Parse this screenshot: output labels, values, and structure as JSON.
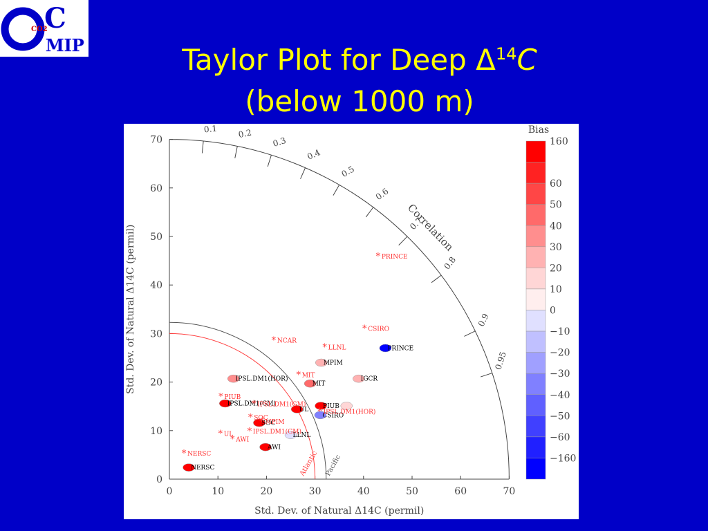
{
  "logo": {
    "letter_o": "O",
    "letter_c": "C",
    "word_mip": "MIP",
    "co2": "CO2"
  },
  "title": {
    "line1_prefix": "Taylor Plot for Deep Δ",
    "superscript": "14",
    "line1_suffix": "C",
    "line2": "(below 1000 m)"
  },
  "colors": {
    "background": "#0000c8",
    "title": "#ffff00",
    "panel": "#ffffff"
  },
  "chart_data": {
    "type": "scatter",
    "subtype": "taylor-diagram",
    "title": "Taylor Plot for Deep Δ14C (below 1000 m)",
    "xlabel": "Std. Dev. of Natural Δ14C (permil)",
    "ylabel": "Std. Dev. of Natural Δ14C (permil)",
    "xlim": [
      0,
      70
    ],
    "ylim": [
      0,
      70
    ],
    "x_ticks": [
      "0",
      "10",
      "20",
      "30",
      "40",
      "50",
      "60",
      "70"
    ],
    "y_ticks": [
      "0",
      "10",
      "20",
      "30",
      "40",
      "50",
      "60",
      "70"
    ],
    "correlation_label": "Correlation",
    "correlation_ticks": [
      {
        "r": 0.1,
        "label": "0.1"
      },
      {
        "r": 0.2,
        "label": "0.2"
      },
      {
        "r": 0.3,
        "label": "0.3"
      },
      {
        "r": 0.4,
        "label": "0.4"
      },
      {
        "r": 0.5,
        "label": "0.5"
      },
      {
        "r": 0.6,
        "label": "0.6"
      },
      {
        "r": 0.7,
        "label": "0.7"
      },
      {
        "r": 0.8,
        "label": "0.8"
      },
      {
        "r": 0.9,
        "label": "0.9"
      },
      {
        "r": 0.95,
        "label": "0.95"
      }
    ],
    "reference_arcs": [
      {
        "name": "Pacific",
        "std": 32.3,
        "color": "#555555"
      },
      {
        "name": "Atlantic",
        "std": 30.0,
        "color": "#ff4040"
      }
    ],
    "colorbar": {
      "title": "Bias",
      "labels": [
        "160",
        "60",
        "50",
        "40",
        "30",
        "20",
        "10",
        "0",
        "−10",
        "−20",
        "−30",
        "−40",
        "−50",
        "−60",
        "−160"
      ],
      "colors": [
        "#ff0000",
        "#ff2222",
        "#ff4646",
        "#ff6a6a",
        "#ff8e8e",
        "#ffb2b2",
        "#ffd6d6",
        "#ffeeee",
        "#e0e0ff",
        "#c0c0ff",
        "#a0a0ff",
        "#8080ff",
        "#6060ff",
        "#4040ff",
        "#2020ff",
        "#0000ff"
      ]
    },
    "pacific_models": [
      {
        "label": "PRINCE",
        "x": 44.5,
        "y": 27.0,
        "color": "#0000ff"
      },
      {
        "label": "MPIM",
        "x": 31.3,
        "y": 24.0,
        "color": "#ffb2b2"
      },
      {
        "label": "IGCR",
        "x": 39.0,
        "y": 20.7,
        "color": "#ffb2b2"
      },
      {
        "label": "IPSL.DM1(HOR)",
        "x": 13.2,
        "y": 20.7,
        "color": "#ff8e8e"
      },
      {
        "label": "MIT",
        "x": 29.0,
        "y": 19.7,
        "color": "#ff6a6a"
      },
      {
        "label": "IPSL.DM1(GM)",
        "x": 11.5,
        "y": 15.6,
        "color": "#ff0000"
      },
      {
        "label": "PIUB",
        "x": 31.2,
        "y": 15.1,
        "color": "#ff0000"
      },
      {
        "label": "",
        "x": 36.5,
        "y": 15.1,
        "color": "#ffd6d6"
      },
      {
        "label": "UL",
        "x": 26.3,
        "y": 14.4,
        "color": "#ff0000"
      },
      {
        "label": "CSIRO",
        "x": 31.1,
        "y": 13.2,
        "color": "#8080ff"
      },
      {
        "label": "SOC",
        "x": 18.5,
        "y": 11.6,
        "color": "#ff0000"
      },
      {
        "label": "LLNL",
        "x": 25.0,
        "y": 9.1,
        "color": "#e0e0ff"
      },
      {
        "label": "AWI",
        "x": 19.8,
        "y": 6.6,
        "color": "#ff0000"
      },
      {
        "label": "NERSC",
        "x": 4.0,
        "y": 2.4,
        "color": "#ff0000"
      }
    ],
    "atlantic_models": [
      {
        "label": "PRINCE",
        "x": 43.0,
        "y": 46.0
      },
      {
        "label": "CSIRO",
        "x": 40.2,
        "y": 31.1
      },
      {
        "label": "NCAR",
        "x": 21.5,
        "y": 28.7
      },
      {
        "label": "LLNL",
        "x": 32.0,
        "y": 27.3
      },
      {
        "label": "MIT",
        "x": 26.6,
        "y": 21.6
      },
      {
        "label": "PIUB",
        "x": 10.6,
        "y": 17.1
      },
      {
        "label": "IPSL.DM1(GM)",
        "x": 17.4,
        "y": 15.6
      },
      {
        "label": "IPSL.DM1(HOR)",
        "x": 31.0,
        "y": 14.0
      },
      {
        "label": "SOC",
        "x": 16.7,
        "y": 12.8
      },
      {
        "label": "MPIM",
        "x": 19.0,
        "y": 12.0
      },
      {
        "label": "IPSL.DM1(GM)",
        "x": 16.5,
        "y": 10.0
      },
      {
        "label": "UL",
        "x": 10.5,
        "y": 9.5
      },
      {
        "label": "AWI",
        "x": 13.0,
        "y": 8.3
      },
      {
        "label": "NERSC",
        "x": 3.0,
        "y": 5.4
      }
    ]
  }
}
